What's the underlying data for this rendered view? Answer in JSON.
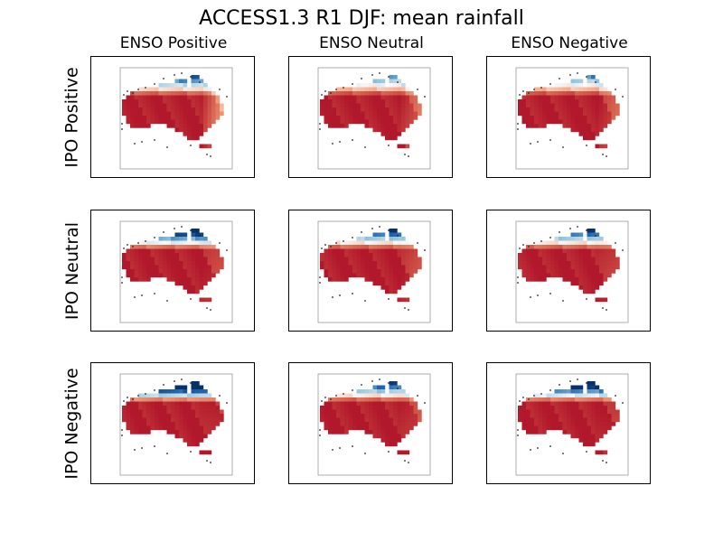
{
  "figure": {
    "title": "ACCESS1.3 R1 DJF: mean rainfall"
  },
  "columns": [
    "ENSO Positive",
    "ENSO Neutral",
    "ENSO Negative"
  ],
  "rows": [
    "IPO Positive",
    "IPO Neutral",
    "IPO Negative"
  ],
  "colors": {
    "wet_dark": "#08306b",
    "wet": "#2166ac",
    "wet_light": "#92c5de",
    "neutral": "#f7f7f7",
    "dry_light": "#f4a582",
    "dry": "#d6604d",
    "dry_dark": "#b2182b"
  },
  "chart_data": {
    "type": "heatmap",
    "colormap": "RdBu",
    "region": "Australia",
    "grid": [
      {
        "row": "IPO Positive",
        "col": "ENSO Positive",
        "north_wet": 0.55,
        "east_wet": 0.6
      },
      {
        "row": "IPO Positive",
        "col": "ENSO Neutral",
        "north_wet": 0.45,
        "east_wet": 0.35
      },
      {
        "row": "IPO Positive",
        "col": "ENSO Negative",
        "north_wet": 0.45,
        "east_wet": 0.3
      },
      {
        "row": "IPO Neutral",
        "col": "ENSO Positive",
        "north_wet": 0.7,
        "east_wet": 0.2
      },
      {
        "row": "IPO Neutral",
        "col": "ENSO Neutral",
        "north_wet": 0.6,
        "east_wet": 0.25
      },
      {
        "row": "IPO Neutral",
        "col": "ENSO Negative",
        "north_wet": 0.6,
        "east_wet": 0.2
      },
      {
        "row": "IPO Negative",
        "col": "ENSO Positive",
        "north_wet": 0.85,
        "east_wet": 0.1
      },
      {
        "row": "IPO Negative",
        "col": "ENSO Neutral",
        "north_wet": 0.6,
        "east_wet": 0.2
      },
      {
        "row": "IPO Negative",
        "col": "ENSO Negative",
        "north_wet": 0.75,
        "east_wet": 0.1
      }
    ]
  }
}
